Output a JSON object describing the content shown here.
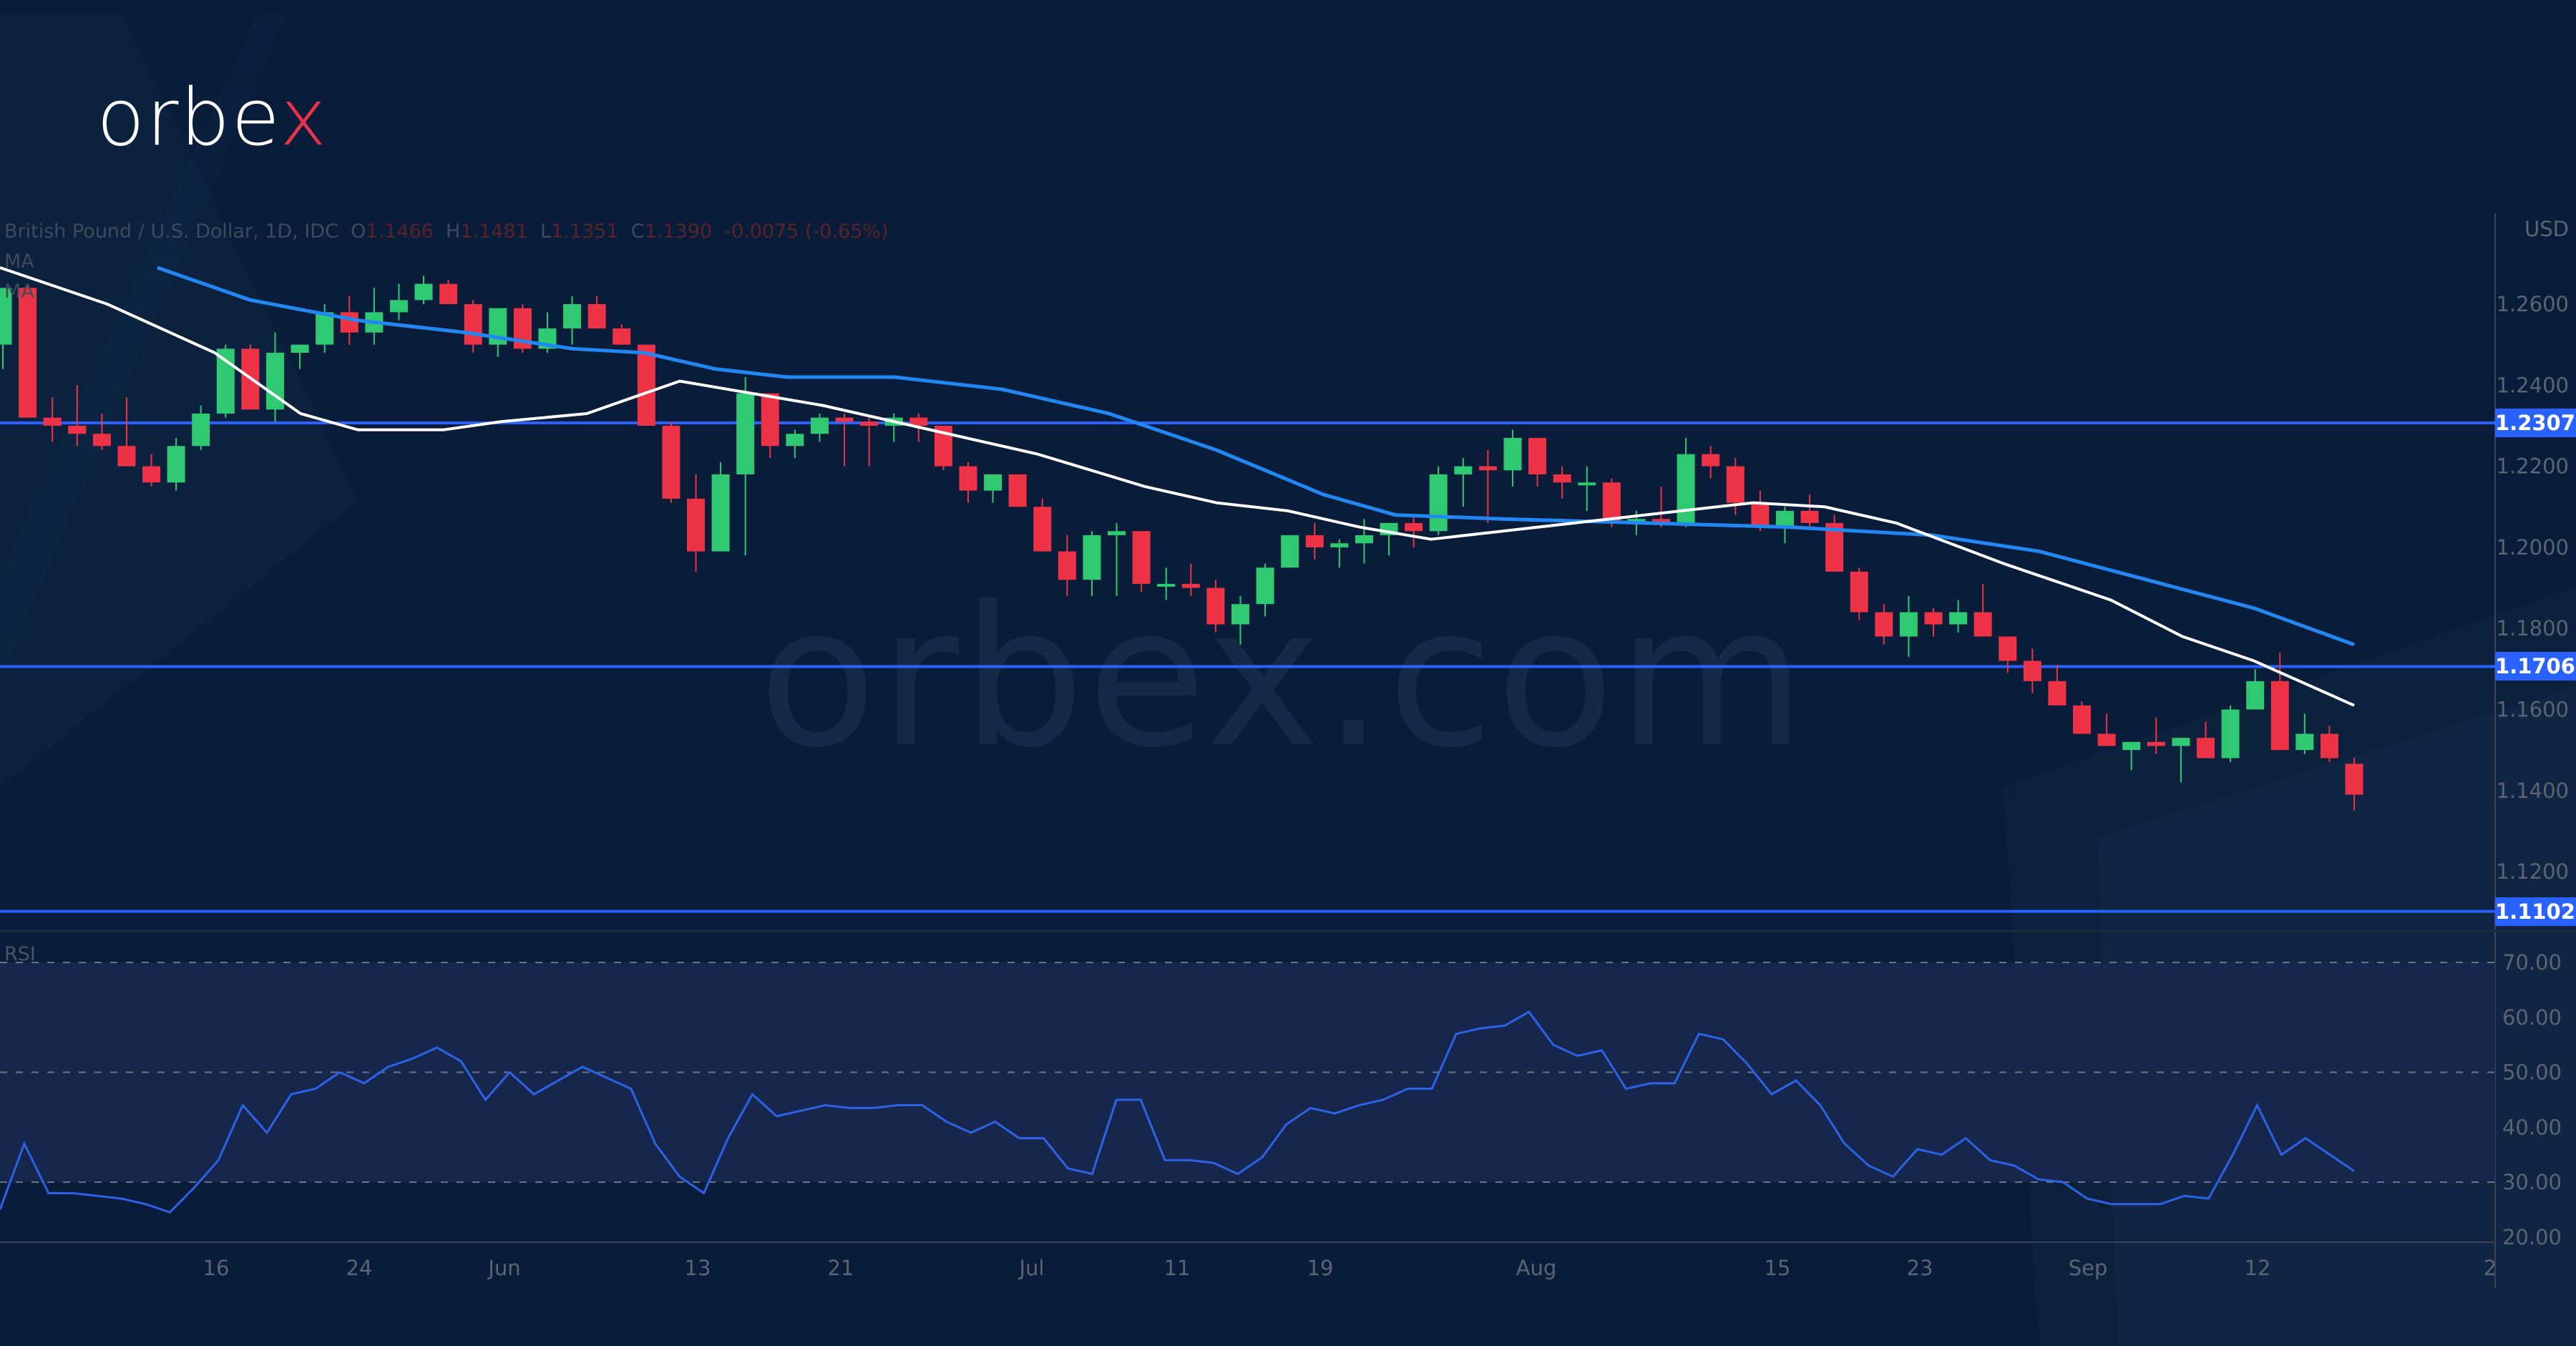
{
  "brand": {
    "logo_text_main": "orbe",
    "logo_text_accent": "x",
    "watermark": "orbex.com"
  },
  "legend": {
    "symbol": "British Pound / U.S. Dollar, 1D, IDC",
    "open_label": "O",
    "open": "1.1466",
    "high_label": "H",
    "high": "1.1481",
    "low_label": "L",
    "low": "1.1351",
    "close_label": "C",
    "close": "1.1390",
    "change": "-0.0075 (-0.65%)",
    "ma1": "MA",
    "ma2": "MA"
  },
  "price_axis": {
    "currency": "USD",
    "ticks": [
      "1.2600",
      "1.2400",
      "1.2200",
      "1.2000",
      "1.1800",
      "1.1600",
      "1.1400",
      "1.1200"
    ]
  },
  "levels": [
    {
      "label": "1.2307",
      "value": 1.2307
    },
    {
      "label": "1.1706",
      "value": 1.1706
    },
    {
      "label": "1.1102",
      "value": 1.1102
    }
  ],
  "rsi": {
    "label": "RSI",
    "ticks": [
      "70.00",
      "60.00",
      "50.00",
      "40.00",
      "30.00",
      "20.00"
    ]
  },
  "time_axis": {
    "ticks": [
      {
        "label": "16",
        "x": 302
      },
      {
        "label": "24",
        "x": 502
      },
      {
        "label": "Jun",
        "x": 705
      },
      {
        "label": "13",
        "x": 975
      },
      {
        "label": "21",
        "x": 1175
      },
      {
        "label": "Jul",
        "x": 1442
      },
      {
        "label": "11",
        "x": 1645
      },
      {
        "label": "19",
        "x": 1845
      },
      {
        "label": "Aug",
        "x": 2147
      },
      {
        "label": "15",
        "x": 2484
      },
      {
        "label": "23",
        "x": 2683
      },
      {
        "label": "Sep",
        "x": 2918
      },
      {
        "label": "12",
        "x": 3155
      },
      {
        "label": "2",
        "x": 3480
      }
    ]
  },
  "colors": {
    "up": "#2ec971",
    "down": "#ef3346",
    "ma_fast": "#ffffff",
    "ma_slow": "#2188f3",
    "level": "#2962ff",
    "rsi": "#2c63e6",
    "bg": "#091d3a"
  },
  "chart_data": {
    "type": "candlestick",
    "title": "British Pound / U.S. Dollar, 1D, IDC",
    "ylabel": "USD",
    "ylim": [
      1.105,
      1.277
    ],
    "horizontal_levels": [
      1.2307,
      1.1706,
      1.1102
    ],
    "x_tick_labels": [
      "16",
      "24",
      "Jun",
      "13",
      "21",
      "Jul",
      "11",
      "19",
      "Aug",
      "15",
      "23",
      "Sep",
      "12",
      "2"
    ],
    "last_ohlc": {
      "open": 1.1466,
      "high": 1.1481,
      "low": 1.1351,
      "close": 1.139,
      "change": -0.0075,
      "change_pct": -0.65
    },
    "candles": [
      [
        1.25,
        1.26,
        1.244,
        1.264
      ],
      [
        1.264,
        1.265,
        1.232,
        1.232
      ],
      [
        1.232,
        1.237,
        1.226,
        1.23
      ],
      [
        1.23,
        1.24,
        1.225,
        1.228
      ],
      [
        1.228,
        1.233,
        1.224,
        1.225
      ],
      [
        1.225,
        1.237,
        1.22,
        1.22
      ],
      [
        1.22,
        1.223,
        1.215,
        1.216
      ],
      [
        1.216,
        1.227,
        1.214,
        1.225
      ],
      [
        1.225,
        1.235,
        1.224,
        1.233
      ],
      [
        1.233,
        1.25,
        1.232,
        1.249
      ],
      [
        1.249,
        1.25,
        1.234,
        1.234
      ],
      [
        1.234,
        1.253,
        1.231,
        1.248
      ],
      [
        1.248,
        1.25,
        1.244,
        1.25
      ],
      [
        1.25,
        1.26,
        1.248,
        1.258
      ],
      [
        1.258,
        1.262,
        1.25,
        1.253
      ],
      [
        1.253,
        1.264,
        1.25,
        1.258
      ],
      [
        1.258,
        1.265,
        1.256,
        1.261
      ],
      [
        1.261,
        1.267,
        1.26,
        1.265
      ],
      [
        1.265,
        1.266,
        1.26,
        1.26
      ],
      [
        1.26,
        1.261,
        1.248,
        1.25
      ],
      [
        1.25,
        1.259,
        1.247,
        1.259
      ],
      [
        1.259,
        1.26,
        1.248,
        1.249
      ],
      [
        1.249,
        1.258,
        1.248,
        1.254
      ],
      [
        1.254,
        1.262,
        1.25,
        1.26
      ],
      [
        1.26,
        1.262,
        1.255,
        1.254
      ],
      [
        1.254,
        1.255,
        1.25,
        1.25
      ],
      [
        1.25,
        1.25,
        1.23,
        1.23
      ],
      [
        1.23,
        1.231,
        1.211,
        1.212
      ],
      [
        1.212,
        1.218,
        1.194,
        1.199
      ],
      [
        1.199,
        1.221,
        1.199,
        1.218
      ],
      [
        1.218,
        1.242,
        1.198,
        1.238
      ],
      [
        1.238,
        1.238,
        1.222,
        1.225
      ],
      [
        1.225,
        1.229,
        1.222,
        1.228
      ],
      [
        1.228,
        1.233,
        1.226,
        1.232
      ],
      [
        1.232,
        1.233,
        1.22,
        1.231
      ],
      [
        1.231,
        1.232,
        1.22,
        1.23
      ],
      [
        1.23,
        1.233,
        1.226,
        1.232
      ],
      [
        1.232,
        1.233,
        1.226,
        1.23
      ],
      [
        1.23,
        1.23,
        1.219,
        1.22
      ],
      [
        1.22,
        1.221,
        1.211,
        1.214
      ],
      [
        1.214,
        1.218,
        1.211,
        1.218
      ],
      [
        1.218,
        1.218,
        1.211,
        1.21
      ],
      [
        1.21,
        1.212,
        1.199,
        1.199
      ],
      [
        1.199,
        1.203,
        1.188,
        1.192
      ],
      [
        1.192,
        1.204,
        1.188,
        1.203
      ],
      [
        1.203,
        1.206,
        1.188,
        1.204
      ],
      [
        1.204,
        1.204,
        1.189,
        1.191
      ],
      [
        1.191,
        1.195,
        1.187,
        1.191
      ],
      [
        1.191,
        1.196,
        1.188,
        1.19
      ],
      [
        1.19,
        1.192,
        1.179,
        1.181
      ],
      [
        1.181,
        1.188,
        1.176,
        1.186
      ],
      [
        1.186,
        1.196,
        1.183,
        1.195
      ],
      [
        1.195,
        1.203,
        1.195,
        1.203
      ],
      [
        1.203,
        1.206,
        1.197,
        1.2
      ],
      [
        1.2,
        1.202,
        1.195,
        1.201
      ],
      [
        1.201,
        1.207,
        1.196,
        1.203
      ],
      [
        1.203,
        1.206,
        1.198,
        1.206
      ],
      [
        1.206,
        1.208,
        1.2,
        1.204
      ],
      [
        1.204,
        1.22,
        1.203,
        1.218
      ],
      [
        1.218,
        1.222,
        1.21,
        1.22
      ],
      [
        1.22,
        1.224,
        1.206,
        1.219
      ],
      [
        1.219,
        1.229,
        1.215,
        1.227
      ],
      [
        1.227,
        1.227,
        1.215,
        1.218
      ],
      [
        1.218,
        1.22,
        1.212,
        1.216
      ],
      [
        1.216,
        1.22,
        1.209,
        1.216
      ],
      [
        1.216,
        1.217,
        1.205,
        1.206
      ],
      [
        1.206,
        1.209,
        1.203,
        1.207
      ],
      [
        1.207,
        1.215,
        1.205,
        1.206
      ],
      [
        1.206,
        1.227,
        1.205,
        1.223
      ],
      [
        1.223,
        1.225,
        1.217,
        1.22
      ],
      [
        1.22,
        1.222,
        1.208,
        1.211
      ],
      [
        1.211,
        1.214,
        1.204,
        1.205
      ],
      [
        1.205,
        1.21,
        1.201,
        1.209
      ],
      [
        1.209,
        1.213,
        1.205,
        1.206
      ],
      [
        1.206,
        1.208,
        1.196,
        1.194
      ],
      [
        1.194,
        1.195,
        1.182,
        1.184
      ],
      [
        1.184,
        1.186,
        1.176,
        1.178
      ],
      [
        1.178,
        1.188,
        1.173,
        1.184
      ],
      [
        1.184,
        1.185,
        1.178,
        1.181
      ],
      [
        1.181,
        1.187,
        1.179,
        1.184
      ],
      [
        1.184,
        1.191,
        1.179,
        1.178
      ],
      [
        1.178,
        1.178,
        1.169,
        1.172
      ],
      [
        1.172,
        1.175,
        1.164,
        1.167
      ],
      [
        1.167,
        1.171,
        1.163,
        1.161
      ],
      [
        1.161,
        1.162,
        1.154,
        1.154
      ],
      [
        1.154,
        1.159,
        1.151,
        1.151
      ],
      [
        1.15,
        1.152,
        1.145,
        1.152
      ],
      [
        1.152,
        1.158,
        1.149,
        1.151
      ],
      [
        1.151,
        1.153,
        1.142,
        1.153
      ],
      [
        1.153,
        1.157,
        1.149,
        1.148
      ],
      [
        1.148,
        1.161,
        1.147,
        1.16
      ],
      [
        1.16,
        1.17,
        1.16,
        1.167
      ],
      [
        1.167,
        1.174,
        1.15,
        1.15
      ],
      [
        1.15,
        1.159,
        1.149,
        1.154
      ],
      [
        1.154,
        1.156,
        1.147,
        1.148
      ],
      [
        1.1466,
        1.1481,
        1.1351,
        1.139
      ]
    ],
    "ma_fast": [
      [
        0,
        1.269
      ],
      [
        150,
        1.26
      ],
      [
        300,
        1.248
      ],
      [
        420,
        1.233
      ],
      [
        500,
        1.229
      ],
      [
        620,
        1.229
      ],
      [
        700,
        1.231
      ],
      [
        820,
        1.233
      ],
      [
        950,
        1.241
      ],
      [
        1050,
        1.238
      ],
      [
        1150,
        1.235
      ],
      [
        1300,
        1.229
      ],
      [
        1450,
        1.223
      ],
      [
        1600,
        1.215
      ],
      [
        1700,
        1.211
      ],
      [
        1800,
        1.209
      ],
      [
        1900,
        1.205
      ],
      [
        2000,
        1.202
      ],
      [
        2100,
        1.204
      ],
      [
        2200,
        1.206
      ],
      [
        2350,
        1.209
      ],
      [
        2450,
        1.211
      ],
      [
        2550,
        1.21
      ],
      [
        2650,
        1.206
      ],
      [
        2800,
        1.196
      ],
      [
        2950,
        1.187
      ],
      [
        3050,
        1.178
      ],
      [
        3150,
        1.172
      ],
      [
        3290,
        1.161
      ]
    ],
    "ma_slow": [
      [
        220,
        1.269
      ],
      [
        350,
        1.261
      ],
      [
        500,
        1.256
      ],
      [
        650,
        1.253
      ],
      [
        800,
        1.249
      ],
      [
        900,
        1.248
      ],
      [
        1000,
        1.244
      ],
      [
        1100,
        1.242
      ],
      [
        1250,
        1.242
      ],
      [
        1400,
        1.239
      ],
      [
        1550,
        1.233
      ],
      [
        1700,
        1.224
      ],
      [
        1850,
        1.213
      ],
      [
        1950,
        1.208
      ],
      [
        2100,
        1.207
      ],
      [
        2300,
        1.206
      ],
      [
        2500,
        1.205
      ],
      [
        2700,
        1.203
      ],
      [
        2850,
        1.199
      ],
      [
        3000,
        1.192
      ],
      [
        3150,
        1.185
      ],
      [
        3290,
        1.176
      ]
    ],
    "rsi_values": [
      25,
      37,
      28,
      28,
      27.5,
      27,
      26,
      24.5,
      29,
      34,
      44,
      39,
      46,
      47,
      50,
      48,
      51,
      52.5,
      54.5,
      52,
      45,
      50,
      46,
      48.5,
      51,
      49,
      47,
      37,
      31,
      28,
      38,
      46,
      42,
      43,
      44,
      43.5,
      43.5,
      44,
      44,
      41,
      39,
      41,
      38,
      38,
      32.5,
      31.5,
      45,
      45,
      34,
      34,
      33.5,
      31.5,
      34.5,
      40.5,
      43.5,
      42.5,
      44,
      45,
      47,
      47,
      57,
      58,
      58.5,
      61,
      55,
      53,
      54,
      47,
      48,
      48,
      57,
      56,
      51.5,
      46,
      48.5,
      44,
      37,
      33,
      31,
      36,
      35,
      38,
      34,
      33,
      30.5,
      30,
      27,
      26,
      26,
      26,
      27.5,
      27,
      35,
      44,
      35,
      38,
      35,
      32
    ]
  }
}
